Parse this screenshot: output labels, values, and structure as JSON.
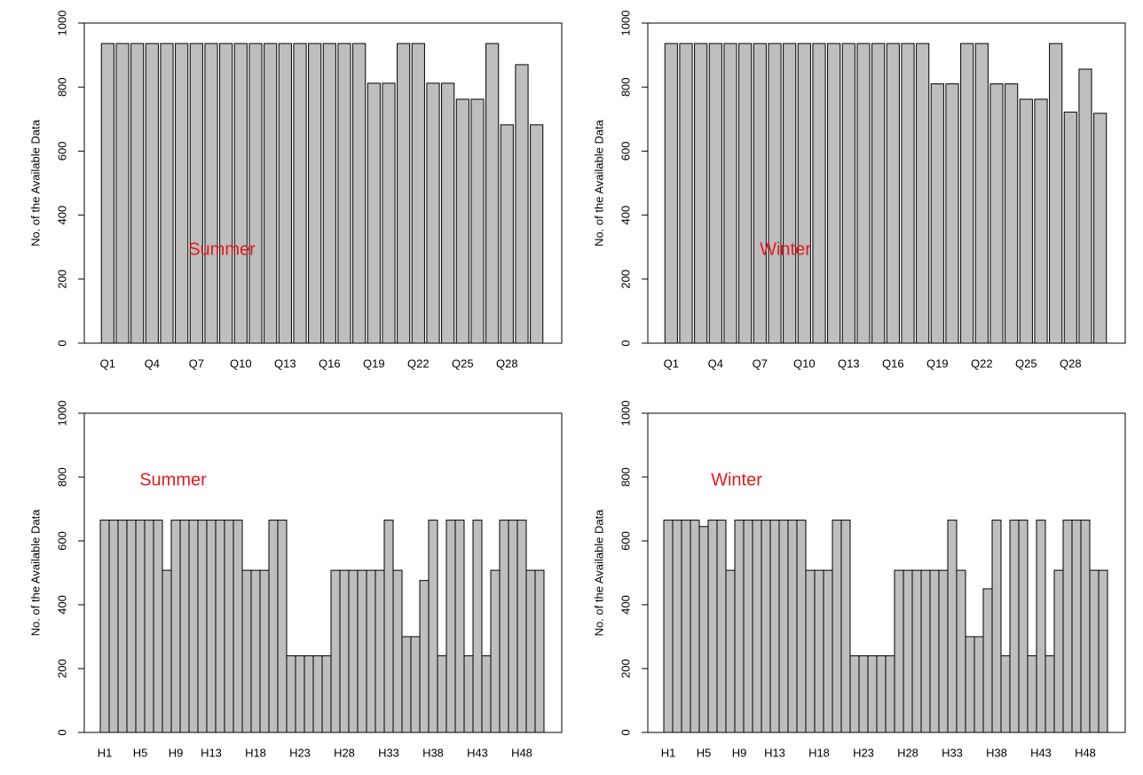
{
  "chart_data": [
    {
      "type": "bar",
      "annotation": "Summer",
      "y_label": "No. of the Available Data",
      "color": "#bebebe",
      "categories": [
        "Q1",
        null,
        null,
        "Q4",
        null,
        null,
        "Q7",
        null,
        null,
        "Q10",
        null,
        null,
        "Q13",
        null,
        null,
        "Q16",
        null,
        null,
        "Q19",
        null,
        null,
        "Q22",
        null,
        null,
        "Q25",
        null,
        null,
        "Q28",
        null,
        null
      ],
      "values": [
        936,
        936,
        936,
        936,
        936,
        936,
        936,
        936,
        936,
        936,
        936,
        936,
        936,
        936,
        936,
        936,
        936,
        936,
        812,
        812,
        936,
        936,
        812,
        812,
        762,
        762,
        936,
        682,
        870,
        682
      ],
      "ylim": [
        0,
        1000
      ],
      "yticks": [
        0,
        200,
        400,
        600,
        800,
        1000
      ]
    },
    {
      "type": "bar",
      "annotation": "Winter",
      "y_label": "No. of the Available Data",
      "color": "#bebebe",
      "categories": [
        "Q1",
        null,
        null,
        "Q4",
        null,
        null,
        "Q7",
        null,
        null,
        "Q10",
        null,
        null,
        "Q13",
        null,
        null,
        "Q16",
        null,
        null,
        "Q19",
        null,
        null,
        "Q22",
        null,
        null,
        "Q25",
        null,
        null,
        "Q28",
        null,
        null
      ],
      "values": [
        936,
        936,
        936,
        936,
        936,
        936,
        936,
        936,
        936,
        936,
        936,
        936,
        936,
        936,
        936,
        936,
        936,
        936,
        810,
        810,
        936,
        936,
        810,
        810,
        762,
        762,
        936,
        722,
        856,
        718
      ],
      "ylim": [
        0,
        1000
      ],
      "yticks": [
        0,
        200,
        400,
        600,
        800,
        1000
      ]
    },
    {
      "type": "bar",
      "annotation": "Summer",
      "y_label": "No. of the Available Data",
      "color": "#bebebe",
      "categories": [
        "H1",
        null,
        null,
        null,
        "H5",
        null,
        null,
        null,
        "H9",
        null,
        null,
        null,
        "H13",
        null,
        null,
        null,
        null,
        "H18",
        null,
        null,
        null,
        null,
        "H23",
        null,
        null,
        null,
        null,
        "H28",
        null,
        null,
        null,
        null,
        "H33",
        null,
        null,
        null,
        null,
        "H38",
        null,
        null,
        null,
        null,
        "H43",
        null,
        null,
        null,
        null,
        "H48",
        null,
        null
      ],
      "values": [
        665,
        665,
        665,
        665,
        665,
        665,
        665,
        508,
        665,
        665,
        665,
        665,
        665,
        665,
        665,
        665,
        508,
        508,
        508,
        665,
        665,
        240,
        240,
        240,
        240,
        240,
        508,
        508,
        508,
        508,
        508,
        508,
        665,
        508,
        300,
        300,
        476,
        665,
        240,
        665,
        665,
        240,
        665,
        240,
        508,
        665,
        665,
        665,
        508,
        508
      ],
      "ylim": [
        0,
        1000
      ],
      "yticks": [
        0,
        200,
        400,
        600,
        800,
        1000
      ]
    },
    {
      "type": "bar",
      "annotation": "Winter",
      "y_label": "No. of the Available Data",
      "color": "#bebebe",
      "categories": [
        "H1",
        null,
        null,
        null,
        "H5",
        null,
        null,
        null,
        "H9",
        null,
        null,
        null,
        "H13",
        null,
        null,
        null,
        null,
        "H18",
        null,
        null,
        null,
        null,
        "H23",
        null,
        null,
        null,
        null,
        "H28",
        null,
        null,
        null,
        null,
        "H33",
        null,
        null,
        null,
        null,
        "H38",
        null,
        null,
        null,
        null,
        "H43",
        null,
        null,
        null,
        null,
        "H48",
        null,
        null
      ],
      "values": [
        665,
        665,
        665,
        665,
        645,
        665,
        665,
        508,
        665,
        665,
        665,
        665,
        665,
        665,
        665,
        665,
        508,
        508,
        508,
        665,
        665,
        240,
        240,
        240,
        240,
        240,
        508,
        508,
        508,
        508,
        508,
        508,
        665,
        508,
        300,
        300,
        450,
        665,
        240,
        665,
        665,
        240,
        665,
        240,
        508,
        665,
        665,
        665,
        508,
        508
      ],
      "ylim": [
        0,
        1000
      ],
      "yticks": [
        0,
        200,
        400,
        600,
        800,
        1000
      ]
    }
  ]
}
